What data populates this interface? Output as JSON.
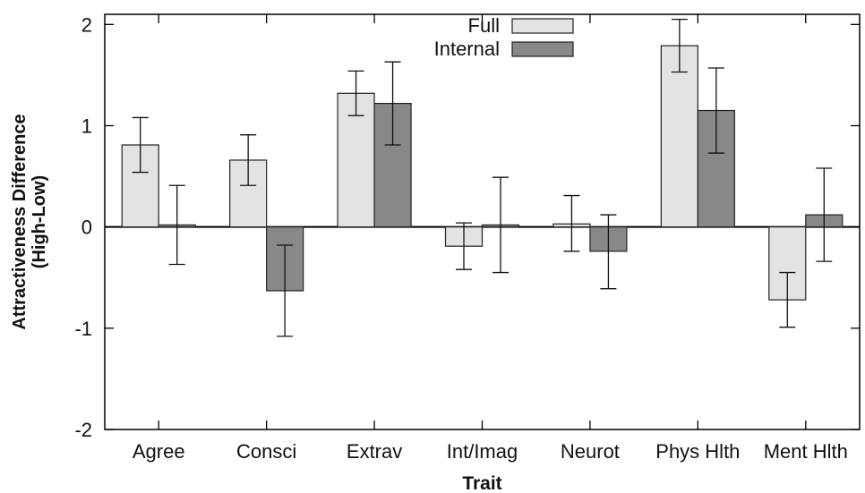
{
  "chart_data": {
    "type": "bar",
    "xlabel": "Trait",
    "ylabel_lines": [
      "Attractiveness Difference",
      "(High-Low)"
    ],
    "categories": [
      "Agree",
      "Consci",
      "Extrav",
      "Int/Imag",
      "Neurot",
      "Phys Hlth",
      "Ment Hlth"
    ],
    "ylim": [
      -2,
      2.1
    ],
    "yticks": [
      -2,
      -1,
      0,
      1,
      2
    ],
    "ytick_labels": [
      "-2",
      "-1",
      "0",
      "1",
      "2"
    ],
    "grid": false,
    "legend_position": "top-center",
    "series": [
      {
        "name": "Full",
        "color": "#e3e3e3",
        "values": [
          0.81,
          0.66,
          1.32,
          -0.19,
          0.03,
          1.79,
          -0.72
        ],
        "error_low": [
          0.54,
          0.41,
          1.1,
          -0.42,
          -0.24,
          1.53,
          -0.99
        ],
        "error_high": [
          1.08,
          0.91,
          1.54,
          0.04,
          0.31,
          2.05,
          -0.45
        ]
      },
      {
        "name": "Internal",
        "color": "#888888",
        "values": [
          0.02,
          -0.63,
          1.22,
          0.02,
          -0.24,
          1.15,
          0.12
        ],
        "error_low": [
          -0.37,
          -1.08,
          0.81,
          -0.45,
          -0.61,
          0.73,
          -0.34
        ],
        "error_high": [
          0.41,
          -0.18,
          1.63,
          0.49,
          0.12,
          1.57,
          0.58
        ]
      }
    ]
  }
}
